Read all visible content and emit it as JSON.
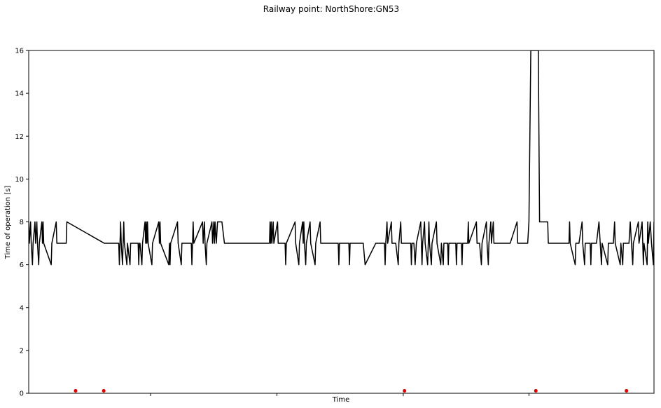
{
  "chart_data": {
    "type": "line",
    "title": "Railway point: NorthShore:GN53",
    "xlabel": "Time",
    "ylabel": "Time of operation [s]",
    "ylim": [
      0,
      16
    ],
    "yticks": [
      0,
      2,
      4,
      6,
      8,
      10,
      12,
      14,
      16
    ],
    "xlim": [
      0,
      1000
    ],
    "grid": false,
    "line_color": "#000000",
    "marker_color": "#e00000",
    "series": [
      {
        "values": [
          [
            0,
            8
          ],
          [
            1,
            7
          ],
          [
            3,
            8
          ],
          [
            4,
            7
          ],
          [
            6,
            6
          ],
          [
            7,
            7
          ],
          [
            10,
            8
          ],
          [
            11,
            7
          ],
          [
            13,
            8
          ],
          [
            14,
            7
          ],
          [
            16,
            6
          ],
          [
            17,
            7
          ],
          [
            21,
            8
          ],
          [
            22,
            7
          ],
          [
            23,
            8
          ],
          [
            24,
            7
          ],
          [
            36,
            6
          ],
          [
            37,
            7
          ],
          [
            44,
            8
          ],
          [
            45,
            7
          ],
          [
            60,
            7
          ],
          [
            61,
            8
          ],
          [
            121,
            7
          ],
          [
            144,
            7
          ],
          [
            145,
            6
          ],
          [
            146,
            7
          ],
          [
            147,
            8
          ],
          [
            148,
            7
          ],
          [
            150,
            6
          ],
          [
            151,
            7
          ],
          [
            152,
            8
          ],
          [
            153,
            7
          ],
          [
            157,
            6
          ],
          [
            158,
            7
          ],
          [
            162,
            6
          ],
          [
            163,
            7
          ],
          [
            175,
            7
          ],
          [
            176,
            6
          ],
          [
            177,
            7
          ],
          [
            178,
            7
          ],
          [
            181,
            6
          ],
          [
            182,
            7
          ],
          [
            186,
            8
          ],
          [
            187,
            7
          ],
          [
            188,
            8
          ],
          [
            189,
            7
          ],
          [
            190,
            8
          ],
          [
            191,
            7
          ],
          [
            197,
            6
          ],
          [
            198,
            7
          ],
          [
            208,
            8
          ],
          [
            209,
            7
          ],
          [
            210,
            8
          ],
          [
            211,
            7
          ],
          [
            224,
            6
          ],
          [
            225,
            7
          ],
          [
            226,
            6
          ],
          [
            227,
            7
          ],
          [
            238,
            8
          ],
          [
            239,
            7
          ],
          [
            244,
            6
          ],
          [
            245,
            7
          ],
          [
            260,
            7
          ],
          [
            261,
            6
          ],
          [
            262,
            7
          ],
          [
            263,
            8
          ],
          [
            264,
            7
          ],
          [
            278,
            8
          ],
          [
            279,
            7
          ],
          [
            281,
            8
          ],
          [
            282,
            7
          ],
          [
            284,
            6
          ],
          [
            285,
            7
          ],
          [
            293,
            8
          ],
          [
            294,
            7
          ],
          [
            296,
            8
          ],
          [
            297,
            7
          ],
          [
            298,
            8
          ],
          [
            300,
            7
          ],
          [
            302,
            8
          ],
          [
            309,
            8
          ],
          [
            313,
            7
          ],
          [
            385,
            7
          ],
          [
            386,
            8
          ],
          [
            387,
            7
          ],
          [
            388,
            8
          ],
          [
            389,
            7
          ],
          [
            391,
            8
          ],
          [
            392,
            7
          ],
          [
            398,
            8
          ],
          [
            399,
            7
          ],
          [
            410,
            7
          ],
          [
            411,
            6
          ],
          [
            412,
            7
          ],
          [
            426,
            8
          ],
          [
            427,
            7
          ],
          [
            432,
            6
          ],
          [
            433,
            7
          ],
          [
            438,
            8
          ],
          [
            439,
            7
          ],
          [
            440,
            8
          ],
          [
            441,
            7
          ],
          [
            443,
            6
          ],
          [
            444,
            7
          ],
          [
            450,
            8
          ],
          [
            451,
            7
          ],
          [
            458,
            6
          ],
          [
            459,
            7
          ],
          [
            466,
            8
          ],
          [
            467,
            7
          ],
          [
            495,
            7
          ],
          [
            496,
            6
          ],
          [
            497,
            7
          ],
          [
            512,
            7
          ],
          [
            513,
            6
          ],
          [
            514,
            7
          ],
          [
            535,
            7
          ],
          [
            538,
            6
          ],
          [
            555,
            7
          ],
          [
            569,
            7
          ],
          [
            570,
            6
          ],
          [
            571,
            7
          ],
          [
            573,
            8
          ],
          [
            574,
            7
          ],
          [
            580,
            8
          ],
          [
            581,
            7
          ],
          [
            587,
            7
          ],
          [
            591,
            6
          ],
          [
            592,
            7
          ],
          [
            595,
            8
          ],
          [
            596,
            7
          ],
          [
            611,
            7
          ],
          [
            612,
            6
          ],
          [
            613,
            7
          ],
          [
            616,
            7
          ],
          [
            618,
            6
          ],
          [
            620,
            7
          ],
          [
            627,
            8
          ],
          [
            628,
            7
          ],
          [
            629,
            6
          ],
          [
            630,
            7
          ],
          [
            633,
            8
          ],
          [
            634,
            7
          ],
          [
            638,
            6
          ],
          [
            639,
            7
          ],
          [
            640,
            8
          ],
          [
            641,
            7
          ],
          [
            644,
            6
          ],
          [
            645,
            7
          ],
          [
            652,
            8
          ],
          [
            653,
            7
          ],
          [
            659,
            6
          ],
          [
            660,
            7
          ],
          [
            663,
            6
          ],
          [
            664,
            7
          ],
          [
            670,
            7
          ],
          [
            671,
            6
          ],
          [
            672,
            7
          ],
          [
            683,
            7
          ],
          [
            684,
            6
          ],
          [
            685,
            7
          ],
          [
            692,
            7
          ],
          [
            693,
            6
          ],
          [
            694,
            7
          ],
          [
            702,
            7
          ],
          [
            703,
            8
          ],
          [
            704,
            7
          ],
          [
            716,
            8
          ],
          [
            717,
            7
          ],
          [
            721,
            7
          ],
          [
            724,
            6
          ],
          [
            725,
            7
          ],
          [
            732,
            8
          ],
          [
            733,
            7
          ],
          [
            735,
            6
          ],
          [
            736,
            7
          ],
          [
            739,
            8
          ],
          [
            740,
            7
          ],
          [
            743,
            8
          ],
          [
            744,
            7
          ],
          [
            755,
            7
          ],
          [
            760,
            7
          ],
          [
            770,
            7
          ],
          [
            781,
            8
          ],
          [
            782,
            7
          ],
          [
            798,
            7
          ],
          [
            800,
            8
          ],
          [
            803,
            16
          ],
          [
            815,
            16
          ],
          [
            817,
            8
          ],
          [
            830,
            8
          ],
          [
            831,
            7
          ],
          [
            847,
            7
          ],
          [
            864,
            7
          ],
          [
            865,
            8
          ],
          [
            866,
            7
          ],
          [
            874,
            6
          ],
          [
            875,
            7
          ],
          [
            880,
            7
          ],
          [
            885,
            8
          ],
          [
            886,
            7
          ],
          [
            889,
            6
          ],
          [
            890,
            7
          ],
          [
            898,
            7
          ],
          [
            899,
            6
          ],
          [
            900,
            7
          ],
          [
            908,
            7
          ],
          [
            912,
            8
          ],
          [
            914,
            7
          ],
          [
            916,
            6
          ],
          [
            917,
            7
          ],
          [
            926,
            6
          ],
          [
            927,
            7
          ],
          [
            935,
            7
          ],
          [
            937,
            8
          ],
          [
            938,
            7
          ],
          [
            946,
            6
          ],
          [
            947,
            7
          ],
          [
            950,
            6
          ],
          [
            951,
            7
          ],
          [
            960,
            7
          ],
          [
            962,
            8
          ],
          [
            964,
            7
          ],
          [
            966,
            6
          ],
          [
            967,
            7
          ],
          [
            975,
            8
          ],
          [
            976,
            7
          ],
          [
            981,
            8
          ],
          [
            983,
            6
          ],
          [
            984,
            7
          ],
          [
            989,
            6
          ],
          [
            990,
            8
          ],
          [
            991,
            7
          ],
          [
            994,
            8
          ],
          [
            996,
            7
          ],
          [
            999,
            6
          ],
          [
            1000,
            8
          ]
        ]
      }
    ],
    "markers": [
      {
        "x": 75,
        "y": 0.1
      },
      {
        "x": 120,
        "y": 0.1
      },
      {
        "x": 601,
        "y": 0.1
      },
      {
        "x": 811,
        "y": 0.1
      },
      {
        "x": 956,
        "y": 0.1
      }
    ],
    "xticks_unlabeled": [
      195,
      397,
      599,
      800
    ]
  }
}
